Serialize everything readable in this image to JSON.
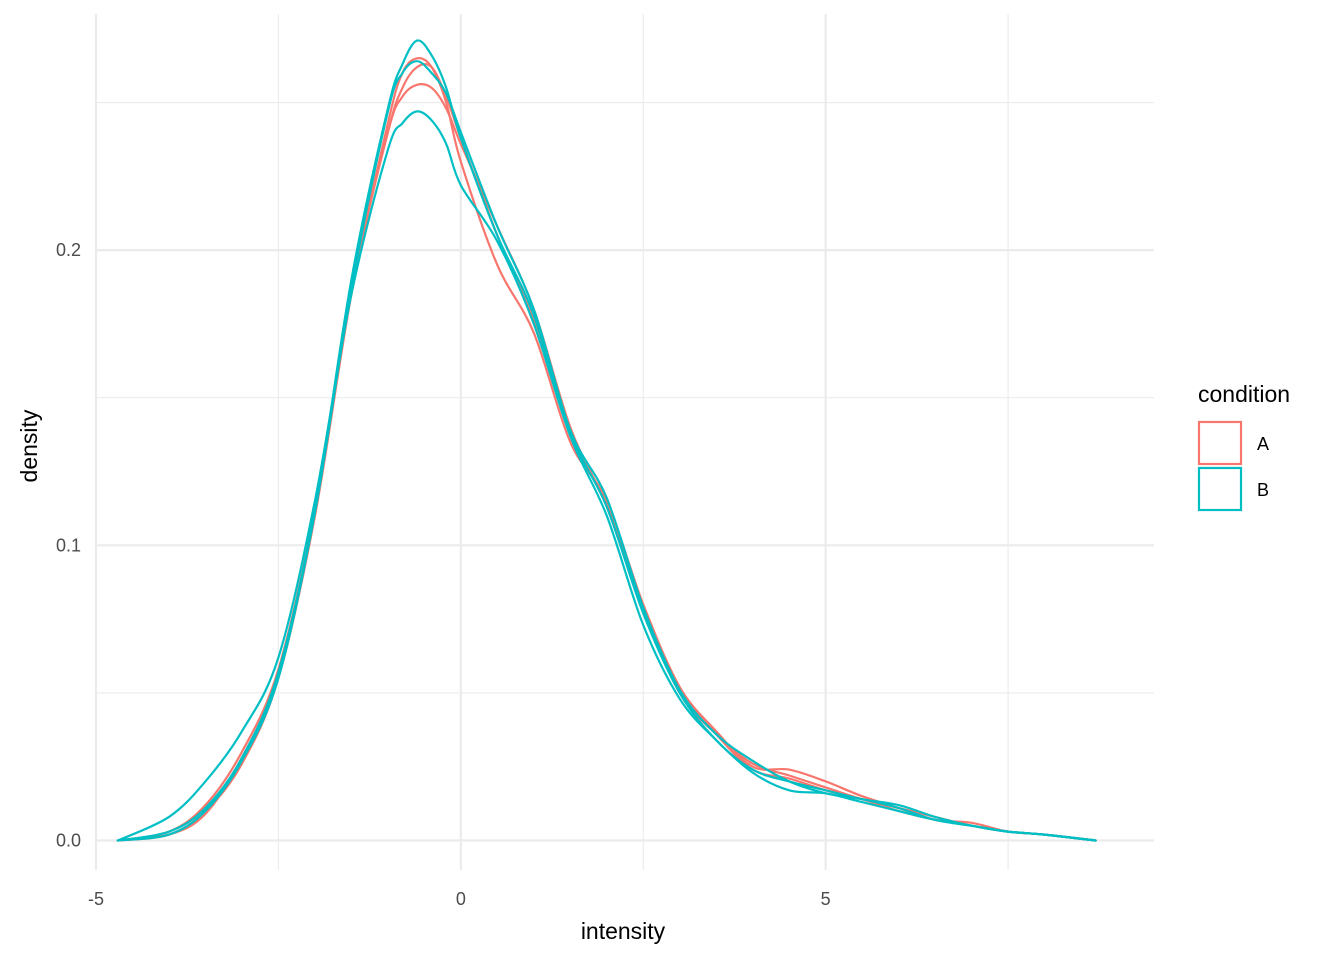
{
  "chart_data": {
    "type": "line",
    "title": "",
    "xlabel": "intensity",
    "ylabel": "density",
    "xlim": [
      -5,
      9.5
    ],
    "ylim": [
      -0.01,
      0.28
    ],
    "x_ticks": [
      -5,
      0,
      5
    ],
    "x_tick_labels": [
      "-5",
      "0",
      "5"
    ],
    "x_minor_ticks": [
      -2.5,
      2.5,
      7.5
    ],
    "y_ticks": [
      0.0,
      0.1,
      0.2
    ],
    "y_tick_labels": [
      "0.0",
      "0.1",
      "0.2"
    ],
    "y_minor_ticks": [
      0.05,
      0.15,
      0.25
    ],
    "grid": true,
    "legend": {
      "title": "condition",
      "position": "right",
      "entries": [
        {
          "label": "A",
          "color": "#F8766D"
        },
        {
          "label": "B",
          "color": "#00BFC4"
        }
      ]
    },
    "x": [
      -4.7,
      -4.0,
      -3.5,
      -3.0,
      -2.5,
      -2.0,
      -1.5,
      -1.0,
      -0.8,
      -0.6,
      -0.4,
      -0.2,
      0.0,
      0.5,
      1.0,
      1.5,
      2.0,
      2.5,
      3.0,
      3.5,
      4.0,
      4.5,
      5.0,
      5.5,
      6.0,
      6.5,
      7.0,
      7.5,
      8.0,
      8.7
    ],
    "series": [
      {
        "group": "A",
        "color": "#F8766D",
        "values": [
          0.0,
          0.002,
          0.01,
          0.026,
          0.055,
          0.11,
          0.185,
          0.243,
          0.26,
          0.265,
          0.262,
          0.25,
          0.23,
          0.195,
          0.172,
          0.135,
          0.115,
          0.08,
          0.052,
          0.037,
          0.025,
          0.024,
          0.02,
          0.015,
          0.011,
          0.007,
          0.006,
          0.003,
          0.002,
          0.0
        ]
      },
      {
        "group": "A",
        "color": "#F8766D",
        "values": [
          0.0,
          0.003,
          0.012,
          0.03,
          0.058,
          0.112,
          0.186,
          0.24,
          0.252,
          0.256,
          0.255,
          0.248,
          0.236,
          0.208,
          0.18,
          0.14,
          0.113,
          0.078,
          0.05,
          0.036,
          0.026,
          0.022,
          0.018,
          0.014,
          0.011,
          0.008,
          0.005,
          0.003,
          0.002,
          0.0
        ]
      },
      {
        "group": "A",
        "color": "#F8766D",
        "values": [
          0.0,
          0.002,
          0.009,
          0.028,
          0.056,
          0.11,
          0.186,
          0.24,
          0.255,
          0.262,
          0.262,
          0.252,
          0.238,
          0.205,
          0.176,
          0.138,
          0.114,
          0.079,
          0.051,
          0.036,
          0.024,
          0.021,
          0.017,
          0.014,
          0.01,
          0.007,
          0.005,
          0.003,
          0.002,
          0.0
        ]
      },
      {
        "group": "B",
        "color": "#00BFC4",
        "values": [
          0.0,
          0.003,
          0.011,
          0.028,
          0.057,
          0.112,
          0.19,
          0.248,
          0.263,
          0.271,
          0.266,
          0.255,
          0.238,
          0.205,
          0.178,
          0.138,
          0.113,
          0.077,
          0.05,
          0.034,
          0.024,
          0.02,
          0.017,
          0.014,
          0.012,
          0.008,
          0.005,
          0.003,
          0.002,
          0.0
        ]
      },
      {
        "group": "B",
        "color": "#00BFC4",
        "values": [
          0.0,
          0.008,
          0.02,
          0.037,
          0.062,
          0.115,
          0.185,
          0.234,
          0.243,
          0.247,
          0.244,
          0.236,
          0.222,
          0.203,
          0.175,
          0.137,
          0.11,
          0.073,
          0.048,
          0.034,
          0.023,
          0.017,
          0.016,
          0.013,
          0.01,
          0.007,
          0.005,
          0.003,
          0.002,
          0.0
        ]
      },
      {
        "group": "B",
        "color": "#00BFC4",
        "values": [
          0.0,
          0.002,
          0.01,
          0.027,
          0.055,
          0.111,
          0.187,
          0.247,
          0.26,
          0.264,
          0.26,
          0.253,
          0.24,
          0.208,
          0.18,
          0.139,
          0.116,
          0.079,
          0.051,
          0.036,
          0.027,
          0.02,
          0.016,
          0.014,
          0.011,
          0.007,
          0.005,
          0.003,
          0.002,
          0.0
        ]
      }
    ]
  }
}
